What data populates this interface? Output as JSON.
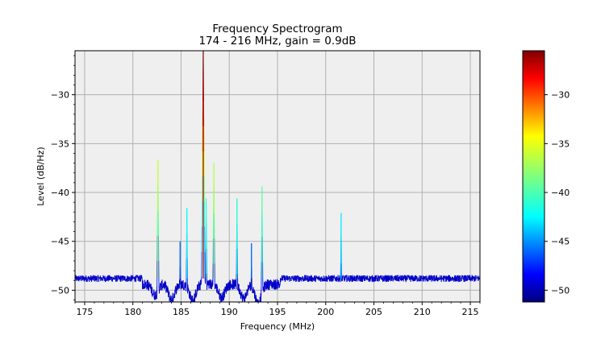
{
  "chart_data": {
    "type": "line",
    "title": "Frequency Spectrogram",
    "subtitle": "174 - 216 MHz, gain = 0.9dB",
    "xlabel": "Frequency (MHz)",
    "ylabel": "Level (dB/Hz)",
    "xlim": [
      174,
      216
    ],
    "ylim": [
      -51.2,
      -25.5
    ],
    "x_ticks": [
      175,
      180,
      185,
      190,
      195,
      200,
      205,
      210,
      215
    ],
    "y_ticks": [
      -30,
      -35,
      -40,
      -45,
      -50
    ],
    "grid": true,
    "colormap": "jet",
    "colorbar": {
      "range": [
        -51.2,
        -25.5
      ],
      "ticks": [
        -30,
        -35,
        -40,
        -45,
        -50
      ]
    },
    "noise_floor": -48.8,
    "peaks": [
      {
        "x": 182.6,
        "y": -36.7
      },
      {
        "x": 184.9,
        "y": -45.0
      },
      {
        "x": 185.6,
        "y": -41.6
      },
      {
        "x": 187.3,
        "y": -25.5
      },
      {
        "x": 187.6,
        "y": -40.6
      },
      {
        "x": 188.4,
        "y": -37.0
      },
      {
        "x": 190.8,
        "y": -40.6
      },
      {
        "x": 192.3,
        "y": -45.2
      },
      {
        "x": 193.4,
        "y": -39.4
      },
      {
        "x": 201.6,
        "y": -42.1
      }
    ],
    "dips": [
      {
        "x": 182.3,
        "y": -50.0
      },
      {
        "x": 184.0,
        "y": -50.5
      },
      {
        "x": 186.2,
        "y": -50.6
      },
      {
        "x": 189.2,
        "y": -50.3
      },
      {
        "x": 191.5,
        "y": -50.4
      },
      {
        "x": 193.0,
        "y": -51.0
      }
    ],
    "colors": {
      "plot_background": "#efefef",
      "grid": "#b0b0b0",
      "trace_base": "#0000c8"
    }
  }
}
